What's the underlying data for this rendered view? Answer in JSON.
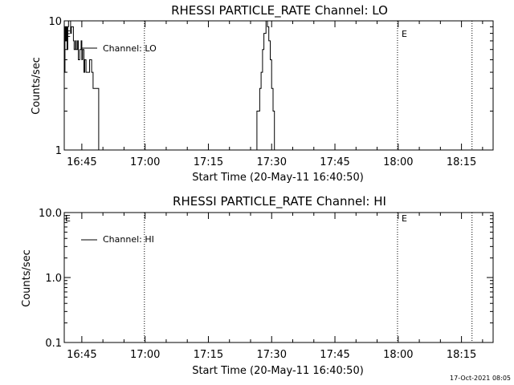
{
  "footer": {
    "timestamp": "17-Oct-2021 08:05"
  },
  "chart_data": [
    {
      "type": "line",
      "title": "RHESSI PARTICLE_RATE Channel: LO",
      "xlabel": "Start Time (20-May-11 16:40:50)",
      "ylabel": "Counts/sec",
      "yscale": "log",
      "ylim": [
        1,
        10
      ],
      "xlim": [
        "16:40:50",
        "18:22:30"
      ],
      "xticks": [
        "16:45",
        "17:00",
        "17:15",
        "17:30",
        "17:45",
        "18:00",
        "18:15"
      ],
      "yticks": [
        "1",
        "10"
      ],
      "legend": [
        "Channel: LO"
      ],
      "annotations": [
        "E",
        "E"
      ],
      "event_lines": [
        "16:40:50",
        "16:59:50",
        "17:59:50",
        "18:17:30"
      ],
      "series": [
        {
          "name": "Channel: LO",
          "points": [
            [
              "16:40:50",
              4
            ],
            [
              "16:41:00",
              9
            ],
            [
              "16:41:10",
              7
            ],
            [
              "16:41:20",
              9
            ],
            [
              "16:41:30",
              6
            ],
            [
              "16:41:40",
              9
            ],
            [
              "16:41:50",
              10
            ],
            [
              "16:42:10",
              10
            ],
            [
              "16:42:20",
              8
            ],
            [
              "16:42:30",
              9
            ],
            [
              "16:42:50",
              9
            ],
            [
              "16:43:00",
              7
            ],
            [
              "16:43:10",
              6
            ],
            [
              "16:43:30",
              7
            ],
            [
              "16:43:40",
              6
            ],
            [
              "16:44:00",
              7
            ],
            [
              "16:44:10",
              5
            ],
            [
              "16:44:30",
              6
            ],
            [
              "16:44:50",
              7
            ],
            [
              "16:45:00",
              5
            ],
            [
              "16:45:10",
              6
            ],
            [
              "16:45:30",
              4
            ],
            [
              "16:45:40",
              5
            ],
            [
              "16:46:00",
              4
            ],
            [
              "16:46:40",
              4
            ],
            [
              "16:46:50",
              5
            ],
            [
              "16:47:10",
              5
            ],
            [
              "16:47:20",
              4
            ],
            [
              "16:47:40",
              3
            ],
            [
              "16:48:00",
              3
            ],
            [
              "16:49:00",
              1
            ],
            [
              "17:26:20",
              1
            ],
            [
              "17:26:30",
              2
            ],
            [
              "17:26:50",
              2
            ],
            [
              "17:27:10",
              3
            ],
            [
              "17:27:30",
              4
            ],
            [
              "17:27:50",
              6
            ],
            [
              "17:28:10",
              8
            ],
            [
              "17:28:40",
              10
            ],
            [
              "17:29:00",
              9
            ],
            [
              "17:29:20",
              7
            ],
            [
              "17:29:40",
              5
            ],
            [
              "17:30:00",
              3
            ],
            [
              "17:30:20",
              2
            ],
            [
              "17:30:40",
              1
            ]
          ]
        }
      ]
    },
    {
      "type": "line",
      "title": "RHESSI PARTICLE_RATE Channel: HI",
      "xlabel": "Start Time (20-May-11 16:40:50)",
      "ylabel": "Counts/sec",
      "yscale": "log",
      "ylim": [
        0.1,
        10
      ],
      "xlim": [
        "16:40:50",
        "18:22:30"
      ],
      "xticks": [
        "16:45",
        "17:00",
        "17:15",
        "17:30",
        "17:45",
        "18:00",
        "18:15"
      ],
      "yticks": [
        "0.1",
        "1.0",
        "10.0"
      ],
      "legend": [
        "Channel: HI"
      ],
      "annotations": [
        "E",
        "E"
      ],
      "event_lines": [
        "16:40:50",
        "16:59:50",
        "17:59:50",
        "18:17:30"
      ],
      "series": [
        {
          "name": "Channel: HI",
          "points": []
        }
      ]
    }
  ]
}
